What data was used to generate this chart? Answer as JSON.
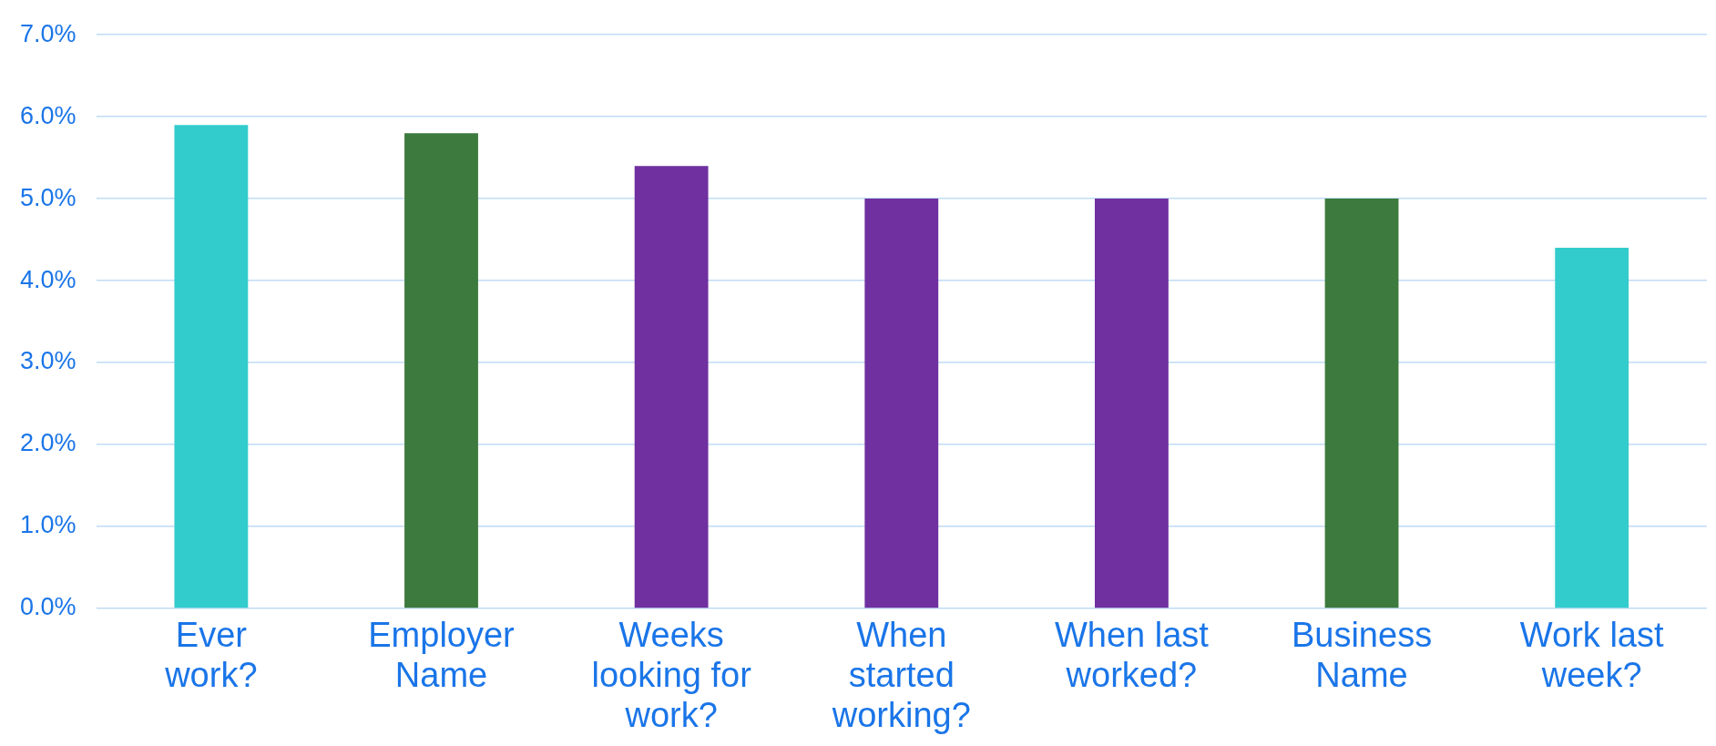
{
  "chart_data": {
    "type": "bar",
    "categories": [
      "Ever work?",
      "Employer Name",
      "Weeks looking for work?",
      "When started working?",
      "When last worked?",
      "Business Name",
      "Work last week?"
    ],
    "values": [
      5.9,
      5.8,
      5.4,
      5.0,
      5.0,
      5.0,
      4.4
    ],
    "colors": [
      "#33cccc",
      "#3d7a3d",
      "#7030a0",
      "#7030a0",
      "#7030a0",
      "#3d7a3d",
      "#33cccc"
    ],
    "ylim": [
      0,
      7
    ],
    "yticks": [
      {
        "value": 0,
        "label": "0.0%"
      },
      {
        "value": 1,
        "label": "1.0%"
      },
      {
        "value": 2,
        "label": "2.0%"
      },
      {
        "value": 3,
        "label": "3.0%"
      },
      {
        "value": 4,
        "label": "4.0%"
      },
      {
        "value": 5,
        "label": "5.0%"
      },
      {
        "value": 6,
        "label": "6.0%"
      },
      {
        "value": 7,
        "label": "7.0%"
      }
    ],
    "grid": "y",
    "legend": false
  }
}
